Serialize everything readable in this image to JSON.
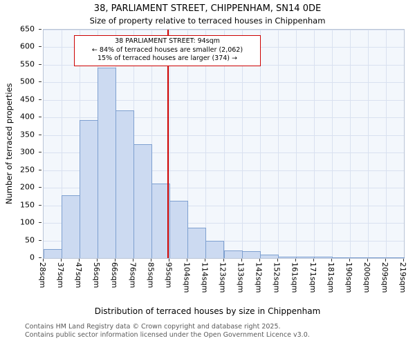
{
  "title_line1": "38, PARLIAMENT STREET, CHIPPENHAM, SN14 0DE",
  "title_line2": "Size of property relative to terraced houses in Chippenham",
  "annotation": {
    "line1": "38 PARLIAMENT STREET: 94sqm",
    "line2": "← 84% of terraced houses are smaller (2,062)",
    "line3": "15% of terraced houses are larger (374) →"
  },
  "footer": {
    "line1": "Contains HM Land Registry data © Crown copyright and database right 2025.",
    "line2": "Contains public sector information licensed under the Open Government Licence v3.0."
  },
  "chart_data": {
    "type": "bar",
    "title": "38, PARLIAMENT STREET, CHIPPENHAM, SN14 0DE",
    "subtitle": "Size of property relative to terraced houses in Chippenham",
    "xlabel": "Distribution of terraced houses by size in Chippenham",
    "ylabel": "Number of terraced properties",
    "x_tick_labels": [
      "28sqm",
      "37sqm",
      "47sqm",
      "56sqm",
      "66sqm",
      "76sqm",
      "85sqm",
      "95sqm",
      "104sqm",
      "114sqm",
      "123sqm",
      "133sqm",
      "142sqm",
      "152sqm",
      "161sqm",
      "171sqm",
      "181sqm",
      "190sqm",
      "200sqm",
      "209sqm",
      "219sqm"
    ],
    "values": [
      25,
      178,
      393,
      542,
      420,
      325,
      212,
      163,
      87,
      50,
      21,
      19,
      9,
      4,
      4,
      4,
      2,
      1,
      1,
      1
    ],
    "ylim": [
      0,
      650
    ],
    "y_ticks": [
      0,
      50,
      100,
      150,
      200,
      250,
      300,
      350,
      400,
      450,
      500,
      550,
      600,
      650
    ],
    "grid": true,
    "legend": "none",
    "marker_value_sqm": 94,
    "marker_color": "#cc0000",
    "bar_fill": "#ccdaf1",
    "bar_border": "#7ea0d0"
  }
}
